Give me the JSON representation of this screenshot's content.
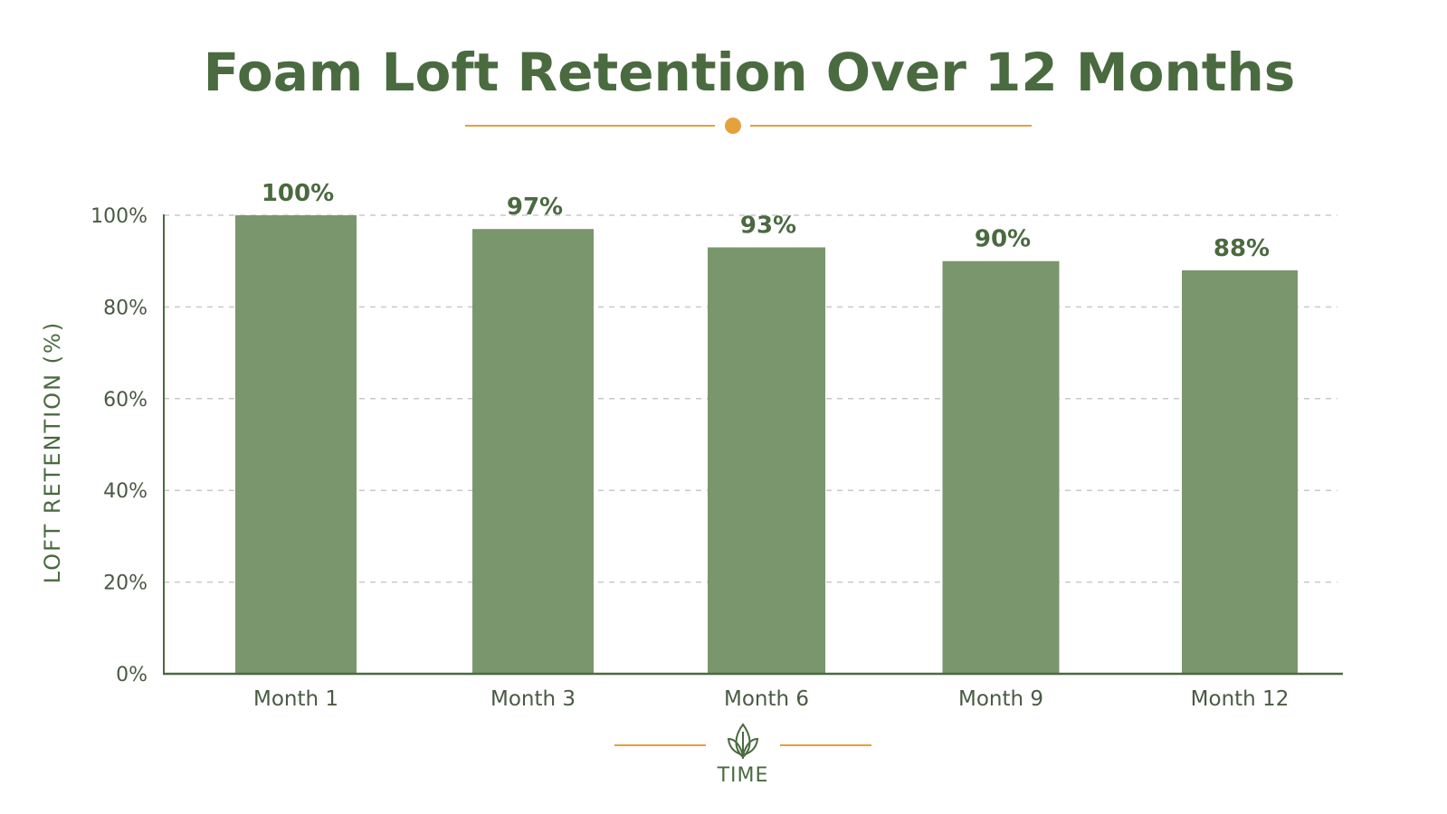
{
  "colors": {
    "title": "#4a6a3f",
    "bar": "#7a966d",
    "accent": "#e4a13c",
    "axis": "#4a6a3f",
    "tick": "#4a5a44",
    "grid": "#c8c8c8"
  },
  "icons": {
    "x_axis_icon": "leaf-icon"
  },
  "chart_data": {
    "type": "bar",
    "title": "Foam Loft Retention Over 12 Months",
    "xlabel": "TIME",
    "ylabel": "LOFT RETENTION (%)",
    "categories": [
      "Month 1",
      "Month 3",
      "Month 6",
      "Month 9",
      "Month 12"
    ],
    "values": [
      100,
      97,
      93,
      90,
      88
    ],
    "value_labels": [
      "100%",
      "97%",
      "93%",
      "90%",
      "88%"
    ],
    "ylim": [
      0,
      100
    ],
    "yticks": [
      0,
      20,
      40,
      60,
      80,
      100
    ],
    "ytick_labels": [
      "0%",
      "20%",
      "40%",
      "60%",
      "80%",
      "100%"
    ],
    "grid": true,
    "legend": "none"
  }
}
